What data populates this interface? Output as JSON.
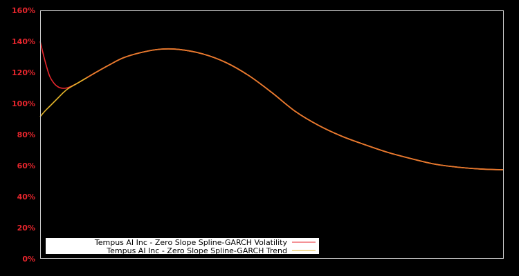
{
  "chart_data": {
    "type": "line",
    "title": "",
    "xlabel": "",
    "ylabel": "",
    "ylim": [
      0,
      160
    ],
    "y_ticks": [
      "0%",
      "20%",
      "40%",
      "60%",
      "80%",
      "100%",
      "120%",
      "140%",
      "160%"
    ],
    "y_tick_values": [
      0,
      20,
      40,
      60,
      80,
      100,
      120,
      140,
      160
    ],
    "grid": false,
    "legend_position": "lower left",
    "background": "#000000",
    "axis_color": "#cccccc",
    "tick_label_color": "#e8262d",
    "x_positions_pct": [
      0,
      1,
      2,
      3,
      4,
      5,
      6,
      8,
      10,
      12,
      15,
      18,
      22,
      26,
      30,
      35,
      40,
      45,
      50,
      55,
      60,
      65,
      70,
      75,
      80,
      85,
      90,
      95,
      100
    ],
    "series": [
      {
        "name": "Tempus AI Inc - Zero Slope Spline-GARCH Volatility",
        "color": "#e8262d",
        "values": [
          140,
          128,
          118,
          113,
          110.5,
          109.8,
          110.2,
          113,
          116.5,
          120,
          125,
          129.5,
          133,
          135,
          134.8,
          132,
          126.5,
          118,
          107,
          95,
          86,
          79,
          73.5,
          68.5,
          64.5,
          61,
          59,
          57.8,
          57.3
        ]
      },
      {
        "name": "Tempus AI Inc - Zero Slope Spline-GARCH Trend",
        "color": "#e5b52a",
        "values": [
          91.5,
          95,
          98,
          101,
          104,
          107,
          109.5,
          113,
          116.5,
          120,
          125,
          129.5,
          133,
          135,
          134.8,
          132,
          126.5,
          118,
          107,
          95,
          86,
          79,
          73.5,
          68.5,
          64.5,
          61,
          59,
          57.8,
          57.3
        ]
      }
    ],
    "overlap_color": "#e8782e"
  },
  "legend": {
    "items": [
      {
        "label": "Tempus AI Inc - Zero Slope Spline-GARCH Volatility",
        "color": "#e8262d"
      },
      {
        "label": "Tempus AI Inc - Zero Slope Spline-GARCH Trend",
        "color": "#e5b52a"
      }
    ]
  }
}
